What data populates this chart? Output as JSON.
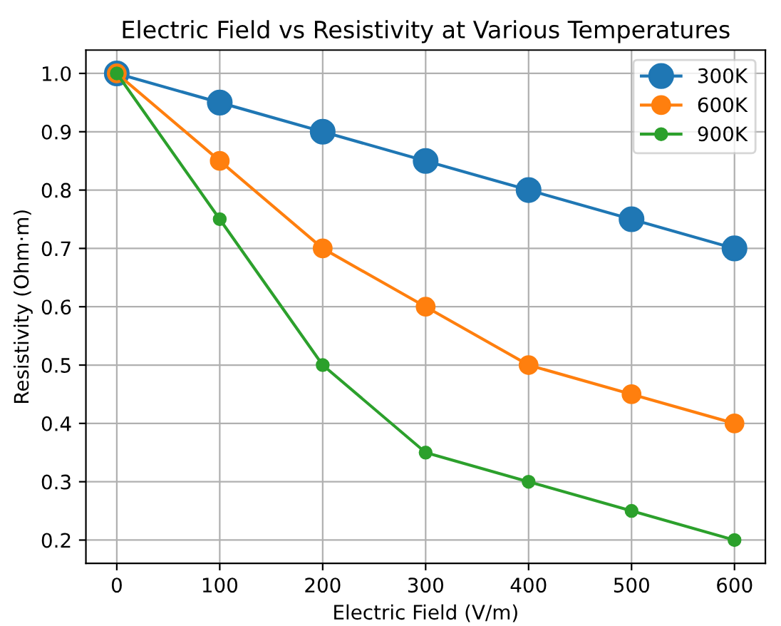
{
  "chart_data": {
    "type": "line",
    "title": "Electric Field vs Resistivity at Various Temperatures",
    "xlabel": "Electric Field (V/m)",
    "ylabel": "Resistivity (Ohm·m)",
    "x": [
      0,
      100,
      200,
      300,
      400,
      500,
      600
    ],
    "series": [
      {
        "name": "300K",
        "color": "#1f77b4",
        "values": [
          1.0,
          0.95,
          0.9,
          0.85,
          0.8,
          0.75,
          0.7
        ]
      },
      {
        "name": "600K",
        "color": "#ff7f0e",
        "values": [
          1.0,
          0.85,
          0.7,
          0.6,
          0.5,
          0.45,
          0.4
        ]
      },
      {
        "name": "900K",
        "color": "#2ca02c",
        "values": [
          1.0,
          0.75,
          0.5,
          0.35,
          0.3,
          0.25,
          0.2
        ]
      }
    ],
    "xlim": [
      -30,
      630
    ],
    "ylim": [
      0.16,
      1.04
    ],
    "xticks": [
      0,
      100,
      200,
      300,
      400,
      500,
      600
    ],
    "yticks": [
      {
        "value": 0.2,
        "label": "0.2"
      },
      {
        "value": 0.3,
        "label": "0.3"
      },
      {
        "value": 0.4,
        "label": "0.4"
      },
      {
        "value": 0.5,
        "label": "0.5"
      },
      {
        "value": 0.6,
        "label": "0.6"
      },
      {
        "value": 0.7,
        "label": "0.7"
      },
      {
        "value": 0.8,
        "label": "0.8"
      },
      {
        "value": 0.9,
        "label": "0.9"
      },
      {
        "value": 1.0,
        "label": "1.0"
      }
    ],
    "grid": true,
    "legend": "top right",
    "marker": "circle",
    "line_style": "solid"
  }
}
